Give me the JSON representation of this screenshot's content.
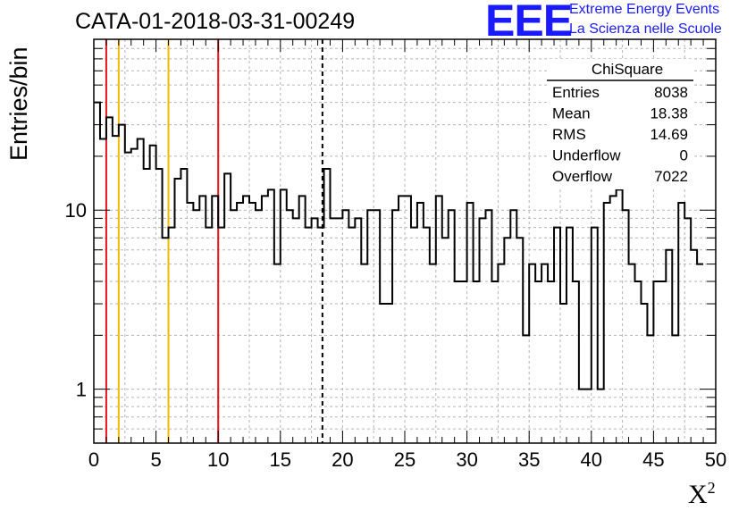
{
  "chart_data": {
    "type": "histogram",
    "title": "CATA-01-2018-03-31-00249",
    "xlabel": "X",
    "xlabel_sup": "2",
    "ylabel": "Entries/bin",
    "xlim": [
      0,
      50
    ],
    "ylim": [
      0.5,
      90
    ],
    "yscale": "log",
    "grid": true,
    "bin_width": 0.5,
    "x_ticks": [
      "0",
      "5",
      "10",
      "15",
      "20",
      "25",
      "30",
      "35",
      "40",
      "45",
      "50"
    ],
    "y_ticks": [
      {
        "value": 1,
        "label": "1"
      },
      {
        "value": 10,
        "label": "10"
      }
    ],
    "counts": [
      40,
      25,
      33,
      26,
      30,
      21,
      22,
      25,
      17,
      23,
      17,
      7,
      8,
      15,
      17,
      11,
      10,
      12,
      8,
      12,
      8,
      16,
      10,
      11,
      12,
      11,
      10,
      12,
      13,
      5,
      13,
      10,
      9,
      12,
      8,
      9,
      8,
      17,
      9,
      9,
      10,
      8,
      9,
      5,
      10,
      10,
      3,
      3,
      10,
      12,
      12,
      8,
      11,
      8,
      5,
      12,
      7,
      10,
      4,
      4,
      11,
      4,
      9,
      10,
      4,
      5,
      7,
      10,
      7,
      2,
      5,
      4,
      5,
      4,
      8,
      3,
      8,
      4,
      1,
      1,
      8,
      1,
      11,
      12,
      13,
      10,
      5,
      4,
      3,
      2,
      4,
      4,
      6,
      2,
      11,
      9,
      6,
      5
    ],
    "vertical_lines": [
      {
        "x": 1,
        "color": "#e8131b",
        "style": "solid"
      },
      {
        "x": 2,
        "color": "#f5b800",
        "style": "solid"
      },
      {
        "x": 6,
        "color": "#f5b800",
        "style": "solid"
      },
      {
        "x": 10,
        "color": "#e8131b",
        "style": "solid"
      },
      {
        "x": 18.38,
        "color": "#000000",
        "style": "dashed"
      }
    ],
    "stats_box": {
      "title": "ChiSquare",
      "rows": [
        {
          "label": "Entries",
          "value": "8038"
        },
        {
          "label": "Mean",
          "value": "18.38"
        },
        {
          "label": "RMS",
          "value": "14.69"
        },
        {
          "label": "Underflow",
          "value": "0"
        },
        {
          "label": "Overflow",
          "value": "7022"
        }
      ]
    }
  },
  "logo": {
    "text": "EEE",
    "line1": "Extreme Energy Events",
    "line2": "La Scienza nelle Scuole",
    "color": "#1a1aff"
  }
}
